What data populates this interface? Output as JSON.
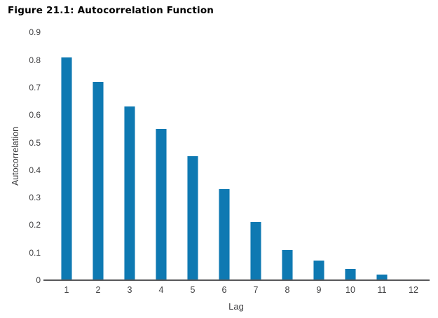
{
  "figure": {
    "title": "Figure 21.1: Autocorrelation Function"
  },
  "chart_data": {
    "type": "bar",
    "title": "Figure 21.1: Autocorrelation Function",
    "xlabel": "Lag",
    "ylabel": "Autocorrelation",
    "categories": [
      "1",
      "2",
      "3",
      "4",
      "5",
      "6",
      "7",
      "8",
      "9",
      "10",
      "11",
      "12"
    ],
    "values": [
      0.81,
      0.72,
      0.63,
      0.55,
      0.45,
      0.33,
      0.21,
      0.11,
      0.07,
      0.04,
      0.02,
      0
    ],
    "ylim": [
      0,
      0.9
    ],
    "yticks": [
      "0",
      "0.1",
      "0.2",
      "0.3",
      "0.4",
      "0.5",
      "0.6",
      "0.7",
      "0.8",
      "0.9"
    ],
    "grid": false,
    "legend": null,
    "bar_color": "#0e79b2",
    "axis_color": "#58585a",
    "label_color": "#3f3f41"
  }
}
